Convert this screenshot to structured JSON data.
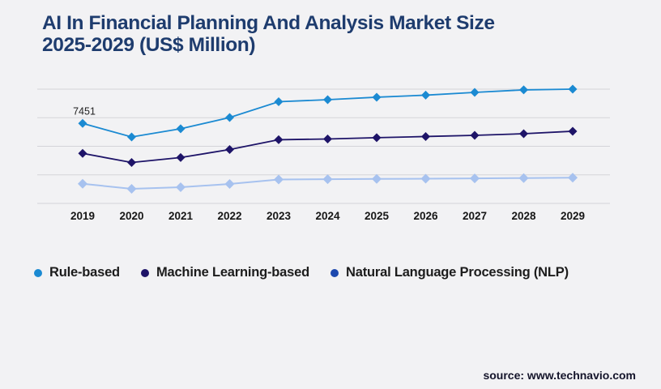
{
  "page": {
    "background": "#f2f2f4"
  },
  "header": {
    "title_line1": "AI In Financial Planning And Analysis Market Size",
    "title_line2": "2025-2029 (US$ Million)",
    "title_color": "#1e3c6e"
  },
  "footer": {
    "source_label": "source: www.technavio.com"
  },
  "chart_data": {
    "type": "line",
    "title": "AI In Financial Planning And Analysis Market Size 2025-2029 (US$ Million)",
    "categories": [
      "2019",
      "2020",
      "2021",
      "2022",
      "2023",
      "2024",
      "2025",
      "2026",
      "2027",
      "2028",
      "2029"
    ],
    "series": [
      {
        "name": "Rule-based",
        "color": "#1b8ad2",
        "legend_color": "#1b8ad2",
        "values": [
          7451,
          6190,
          6950,
          8000,
          9470,
          9660,
          9890,
          10080,
          10340,
          10570,
          10640
        ]
      },
      {
        "name": "Machine Learning-based",
        "color": "#1e1468",
        "legend_color": "#1e1468",
        "values": [
          4660,
          3810,
          4270,
          5020,
          5930,
          6000,
          6120,
          6230,
          6340,
          6490,
          6720
        ]
      },
      {
        "name": "Natural Language Processing (NLP)",
        "color": "#a7c2ef",
        "legend_color": "#1c48ae",
        "values": [
          1830,
          1360,
          1510,
          1810,
          2230,
          2250,
          2280,
          2300,
          2330,
          2360,
          2400
        ]
      }
    ],
    "annotations": [
      {
        "text": "7451",
        "series_index": 0,
        "point_index": 0
      }
    ],
    "xlabel": "",
    "ylabel": "",
    "ylim": [
      0,
      10640
    ],
    "y_axis_labels_shown": false,
    "gridlines": 5,
    "grid_color": "#d4d4d8",
    "marker": "diamond",
    "legend_position": "bottom-left",
    "x_label_color": "#161616",
    "annotation_color": "#1f1f1f"
  }
}
